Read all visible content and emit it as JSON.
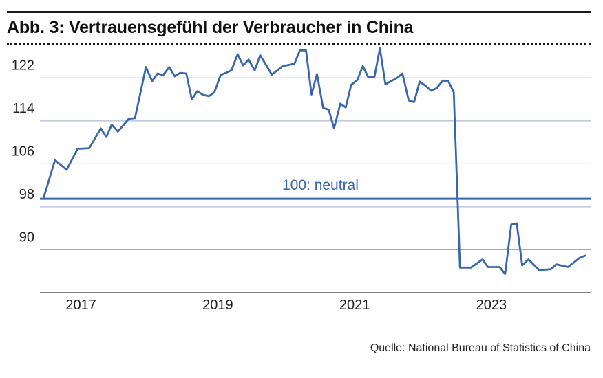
{
  "title": "Abb. 3: Vertrauensgefühl der Verbraucher in China",
  "source": "Quelle: National Bureau of Statistics of China",
  "colors": {
    "line": "#3a66ad",
    "grid": "#9aa9c9",
    "axis": "#333333",
    "text": "#222222"
  },
  "chart_data": {
    "type": "line",
    "title": "Abb. 3: Vertrauensgefühl der Verbraucher in China",
    "xlabel": "",
    "ylabel": "",
    "ylim": [
      82,
      126
    ],
    "xlim": [
      2016.4,
      2024.45
    ],
    "y_ticks": [
      90,
      98,
      106,
      114,
      122
    ],
    "x_ticks": [
      {
        "value": 2017,
        "label": "2017"
      },
      {
        "value": 2019,
        "label": "2019"
      },
      {
        "value": 2021,
        "label": "2021"
      },
      {
        "value": 2023,
        "label": "2023"
      }
    ],
    "grid": "horizontal",
    "reference_line": {
      "value": 99.5,
      "label": "100: neutral"
    },
    "series": [
      {
        "x": [
          2016.45,
          2016.62,
          2016.79,
          2016.95,
          2017.12,
          2017.29,
          2017.37,
          2017.45,
          2017.54,
          2017.7,
          2017.79,
          2017.95,
          2018.04,
          2018.12,
          2018.2,
          2018.29,
          2018.37,
          2018.45,
          2018.54,
          2018.62,
          2018.7,
          2018.79,
          2018.87,
          2018.95,
          2019.04,
          2019.2,
          2019.29,
          2019.37,
          2019.45,
          2019.54,
          2019.62,
          2019.79,
          2019.95,
          2020.12,
          2020.2,
          2020.29,
          2020.37,
          2020.45,
          2020.54,
          2020.62,
          2020.7,
          2020.79,
          2020.87,
          2020.95,
          2021.04,
          2021.12,
          2021.2,
          2021.29,
          2021.37,
          2021.45,
          2021.62,
          2021.7,
          2021.79,
          2021.87,
          2021.95,
          2022.04,
          2022.12,
          2022.2,
          2022.29,
          2022.37,
          2022.45,
          2022.54,
          2022.7,
          2022.87,
          2022.95,
          2023.12,
          2023.2,
          2023.29,
          2023.37,
          2023.45,
          2023.54,
          2023.7,
          2023.87,
          2023.95,
          2024.12,
          2024.29,
          2024.37
        ],
        "values": [
          99.5,
          106.7,
          104.9,
          108.8,
          108.9,
          112.6,
          111.0,
          113.3,
          112.0,
          114.4,
          114.5,
          124.0,
          121.4,
          122.8,
          122.5,
          124.0,
          122.3,
          122.9,
          122.8,
          118.0,
          119.5,
          118.8,
          118.6,
          119.3,
          122.5,
          123.4,
          126.4,
          124.3,
          125.4,
          123.4,
          126.2,
          122.6,
          124.2,
          124.6,
          127.1,
          127.1,
          118.9,
          122.7,
          116.4,
          116.1,
          112.6,
          117.2,
          116.5,
          120.7,
          121.6,
          124.2,
          122.1,
          122.2,
          127.5,
          120.8,
          122.0,
          122.8,
          117.8,
          117.5,
          121.3,
          120.5,
          119.6,
          120.1,
          121.5,
          121.4,
          119.3,
          86.7,
          86.7,
          88.2,
          86.8,
          86.8,
          85.5,
          94.7,
          94.9,
          87.1,
          88.2,
          86.2,
          86.4,
          87.3,
          86.8,
          88.5,
          88.9
        ]
      }
    ]
  }
}
